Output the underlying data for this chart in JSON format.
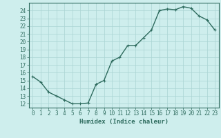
{
  "x": [
    0,
    1,
    2,
    3,
    4,
    5,
    6,
    7,
    8,
    9,
    10,
    11,
    12,
    13,
    14,
    15,
    16,
    17,
    18,
    19,
    20,
    21,
    22,
    23
  ],
  "y": [
    15.5,
    14.8,
    13.5,
    13.0,
    12.5,
    12.0,
    12.0,
    12.1,
    14.5,
    15.0,
    17.5,
    18.0,
    19.5,
    19.5,
    20.5,
    21.5,
    24.0,
    24.2,
    24.1,
    24.5,
    24.3,
    23.3,
    22.8,
    21.5
  ],
  "line_color": "#2e6b5e",
  "marker": "+",
  "marker_size": 3,
  "marker_linewidth": 0.8,
  "bg_color": "#ceeeed",
  "grid_color": "#aad4d3",
  "xlabel": "Humidex (Indice chaleur)",
  "xlim": [
    -0.5,
    23.5
  ],
  "ylim": [
    11.5,
    25.0
  ],
  "yticks": [
    12,
    13,
    14,
    15,
    16,
    17,
    18,
    19,
    20,
    21,
    22,
    23,
    24
  ],
  "xticks": [
    0,
    1,
    2,
    3,
    4,
    5,
    6,
    7,
    8,
    9,
    10,
    11,
    12,
    13,
    14,
    15,
    16,
    17,
    18,
    19,
    20,
    21,
    22,
    23
  ],
  "tick_fontsize": 5.5,
  "xlabel_fontsize": 6.5,
  "label_color": "#2e6b5e",
  "linewidth": 1.0,
  "spine_color": "#2e6b5e"
}
